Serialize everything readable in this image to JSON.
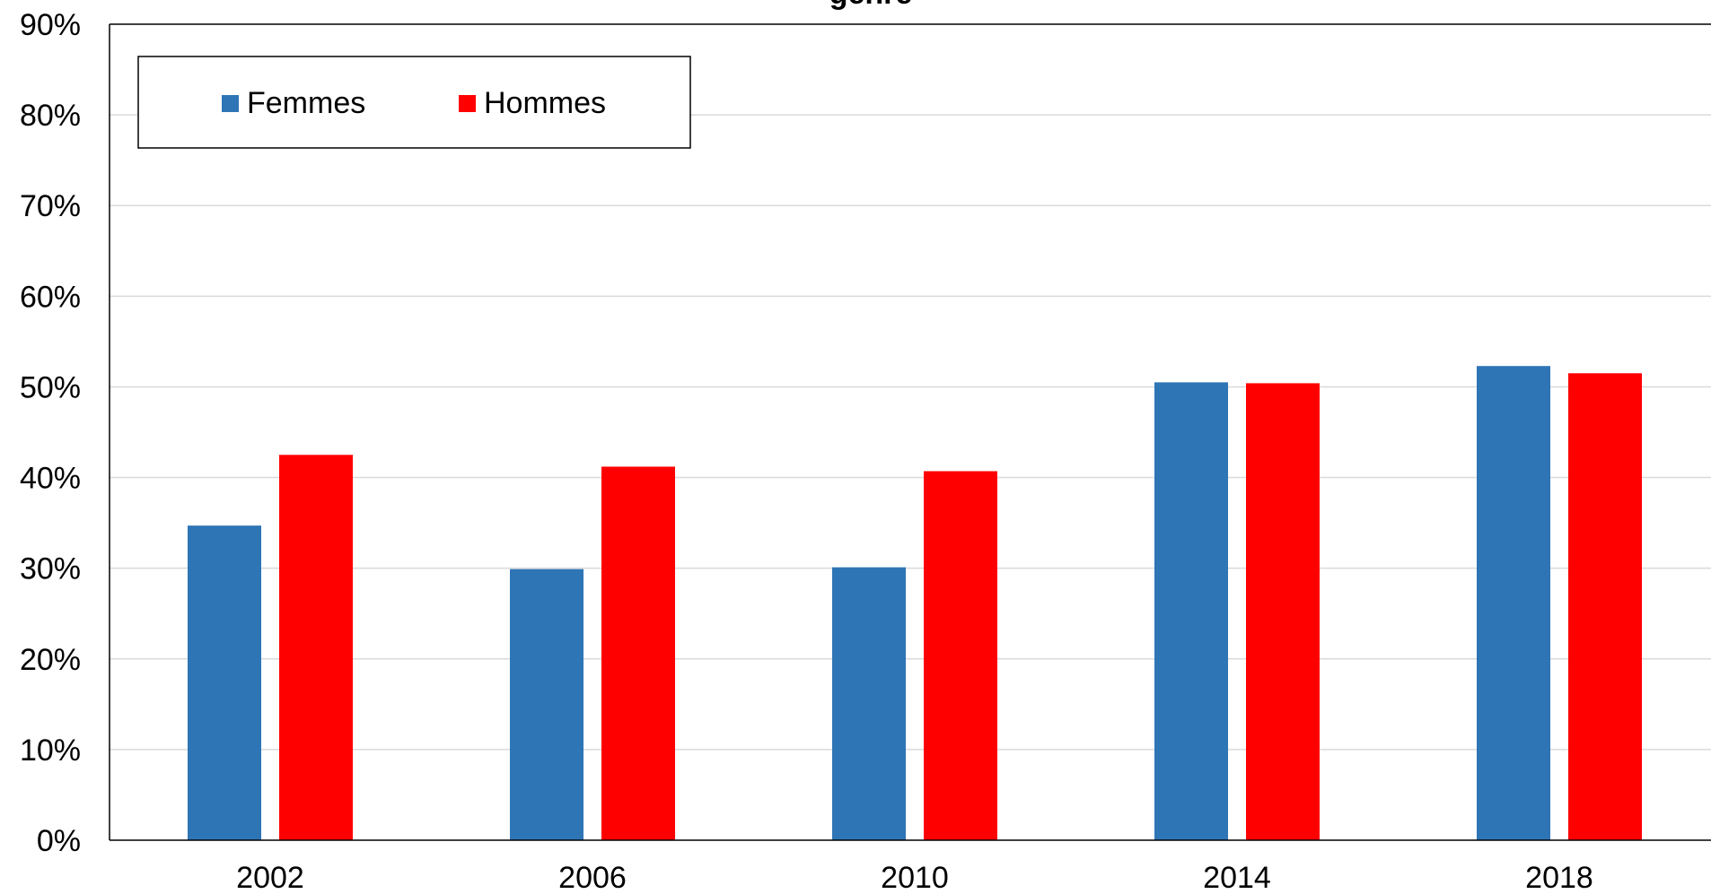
{
  "chart_data": {
    "type": "bar",
    "title": "genre",
    "categories": [
      "2002",
      "2006",
      "2010",
      "2014",
      "2018"
    ],
    "series": [
      {
        "name": "Femmes",
        "color": "#2e75b6",
        "values": [
          34.7,
          29.9,
          30.1,
          50.5,
          52.3
        ]
      },
      {
        "name": "Hommes",
        "color": "#ff0000",
        "values": [
          42.5,
          41.2,
          40.7,
          50.4,
          51.5
        ]
      }
    ],
    "ylim": [
      0,
      90
    ],
    "ytick_labels": [
      "0%",
      "10%",
      "20%",
      "30%",
      "40%",
      "50%",
      "60%",
      "70%",
      "80%",
      "90%"
    ],
    "grid": true,
    "legend_position": "top-left"
  }
}
